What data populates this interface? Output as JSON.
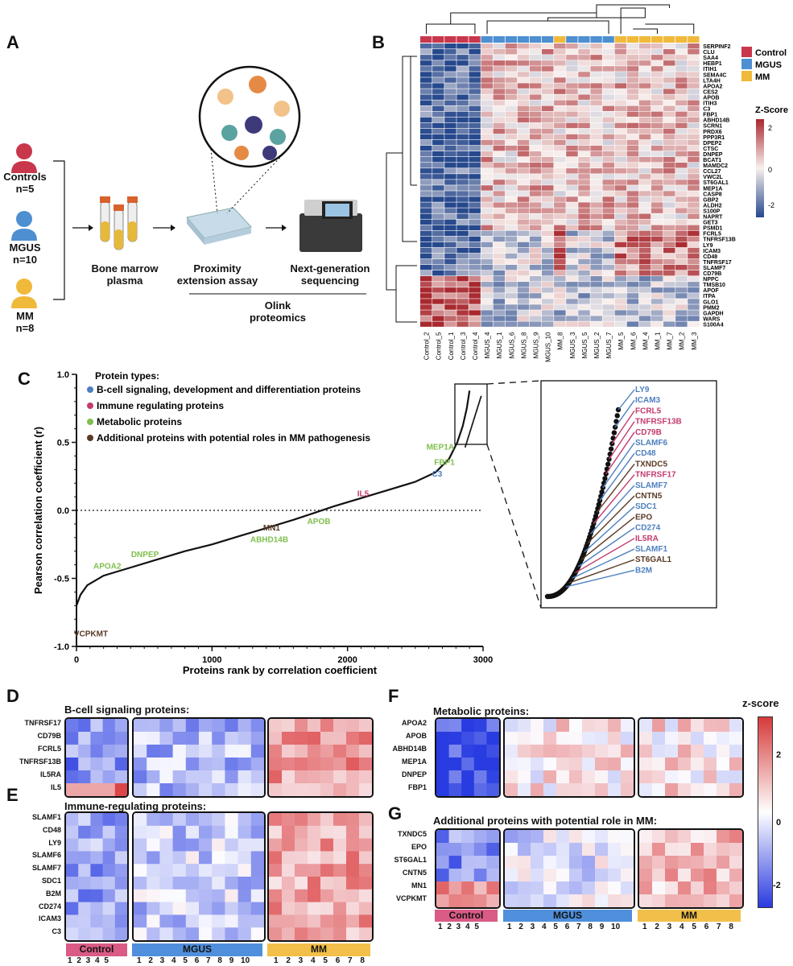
{
  "panels": {
    "a": "A",
    "b": "B",
    "c": "C",
    "d": "D",
    "e": "E",
    "f": "F",
    "g": "G"
  },
  "panelA": {
    "groups": [
      {
        "name": "Controls",
        "count": "n=5",
        "color": "#c9374c"
      },
      {
        "name": "MGUS",
        "count": "n=10",
        "color": "#4d8fd1"
      },
      {
        "name": "MM",
        "count": "n=8",
        "color": "#f0b93a"
      }
    ],
    "steps": {
      "sample": "Bone marrow\nplasma",
      "assay": "Proximity\nextension assay",
      "seq": "Next-generation\nsequencing",
      "platform": "Olink\nproteomics"
    }
  },
  "panelB": {
    "legend": [
      {
        "label": "Control",
        "color": "#c9374c"
      },
      {
        "label": "MGUS",
        "color": "#4d8fd1"
      },
      {
        "label": "MM",
        "color": "#f0b93a"
      }
    ],
    "zscore_title": "Z-Score",
    "zscore_ticks": [
      "2",
      "0",
      "-2"
    ],
    "proteins": [
      "SERPINF2",
      "CLU",
      "SAA4",
      "HEBP1",
      "ITIH1",
      "SEMA4C",
      "LTA4H",
      "APOA2",
      "CES2",
      "APOB",
      "ITIH3",
      "C3",
      "FBP1",
      "ABHD14B",
      "SCRN1",
      "PRDX6",
      "PPP3R1",
      "DPEP2",
      "CTSC",
      "DNPEP",
      "BCAT1",
      "MAMDC2",
      "CCL27",
      "VWC2L",
      "ST6GAL1",
      "MEP1A",
      "CASP8",
      "GBP2",
      "ALDH2",
      "S100P",
      "NAPRT",
      "GET3",
      "PSMD1",
      "FCRL5",
      "TNFRSF13B",
      "LY9",
      "ICAM3",
      "CD48",
      "TNFRSF17",
      "SLAMF7",
      "CD79B",
      "NPPC",
      "TMSB10",
      "APOF",
      "ITPA",
      "GLO1",
      "PMM2",
      "GAPDH",
      "WARS",
      "S100A4"
    ],
    "samples": [
      "Control_2",
      "Control_5",
      "Control_1",
      "Control_3",
      "Control_4",
      "MGUS_4",
      "MGUS_1",
      "MGUS_6",
      "MGUS_8",
      "MGUS_9",
      "MGUS_10",
      "MM_8",
      "MGUS_3",
      "MGUS_5",
      "MGUS_2",
      "MGUS_7",
      "MM_5",
      "MM_6",
      "MM_4",
      "MM_1",
      "MM_7",
      "MM_2",
      "MM_3"
    ],
    "sample_groups": [
      "C",
      "C",
      "C",
      "C",
      "C",
      "G",
      "G",
      "G",
      "G",
      "G",
      "G",
      "M",
      "G",
      "G",
      "G",
      "G",
      "M",
      "M",
      "M",
      "M",
      "M",
      "M",
      "M"
    ]
  },
  "panelC": {
    "chart_data": {
      "type": "line",
      "title": "",
      "xlabel": "Proteins rank by correlation coefficient",
      "ylabel": "Pearson correlation coefficient (r)",
      "xlim": [
        0,
        3000
      ],
      "ylim": [
        -1.0,
        1.0
      ],
      "xticks": [
        "0",
        "1000",
        "2000",
        "3000"
      ],
      "yticks": [
        "1.0",
        "0.5",
        "0.0",
        "-0.5",
        "-1.0"
      ],
      "legend_title": "Protein types:",
      "legend": [
        {
          "label": "B-cell signaling, development and differentiation proteins",
          "color": "#4d7fc0"
        },
        {
          "label": "Immune regulating proteins",
          "color": "#c43a6e"
        },
        {
          "label": "Metabolic proteins",
          "color": "#7fbf4d"
        },
        {
          "label": "Additional proteins with potential roles in MM pathogenesis",
          "color": "#5a3a25"
        }
      ],
      "curve": [
        [
          0,
          -0.7
        ],
        [
          30,
          -0.62
        ],
        [
          80,
          -0.55
        ],
        [
          200,
          -0.48
        ],
        [
          400,
          -0.42
        ],
        [
          600,
          -0.36
        ],
        [
          800,
          -0.3
        ],
        [
          1000,
          -0.25
        ],
        [
          1200,
          -0.19
        ],
        [
          1400,
          -0.13
        ],
        [
          1600,
          -0.07
        ],
        [
          1750,
          -0.02
        ],
        [
          1900,
          0.03
        ],
        [
          2100,
          0.09
        ],
        [
          2300,
          0.15
        ],
        [
          2500,
          0.21
        ],
        [
          2650,
          0.28
        ],
        [
          2750,
          0.38
        ],
        [
          2810,
          0.5
        ],
        [
          2850,
          0.62
        ],
        [
          2880,
          0.75
        ],
        [
          2900,
          0.88
        ]
      ],
      "annotations": [
        {
          "label": "MEP1A",
          "x": 2760,
          "y": 0.43,
          "type": "metabolic"
        },
        {
          "label": "FBP1",
          "x": 2770,
          "y": 0.37,
          "type": "metabolic"
        },
        {
          "label": "C3",
          "x": 2730,
          "y": 0.32,
          "type": "bcell"
        },
        {
          "label": "IL5",
          "x": 2250,
          "y": 0.08,
          "type": "immune"
        },
        {
          "label": "APOB",
          "x": 1750,
          "y": -0.03,
          "type": "metabolic"
        },
        {
          "label": "MN1",
          "x": 1520,
          "y": -0.1,
          "type": "additional"
        },
        {
          "label": "ABHD14B",
          "x": 1520,
          "y": -0.14,
          "type": "metabolic"
        },
        {
          "label": "DNPEP",
          "x": 700,
          "y": -0.32,
          "type": "metabolic"
        },
        {
          "label": "APOA2",
          "x": 600,
          "y": -0.37,
          "type": "metabolic"
        },
        {
          "label": "VCPKMT",
          "x": 130,
          "y": -0.76,
          "type": "additional"
        }
      ]
    },
    "zoom_labels": [
      {
        "label": "LY9",
        "type": "bcell"
      },
      {
        "label": "ICAM3",
        "type": "bcell"
      },
      {
        "label": "FCRL5",
        "type": "immune"
      },
      {
        "label": "TNFRSF13B",
        "type": "immune"
      },
      {
        "label": "CD79B",
        "type": "immune"
      },
      {
        "label": "SLAMF6",
        "type": "bcell"
      },
      {
        "label": "CD48",
        "type": "bcell"
      },
      {
        "label": "TXNDC5",
        "type": "additional"
      },
      {
        "label": "TNFRSF17",
        "type": "immune"
      },
      {
        "label": "SLAMF7",
        "type": "bcell"
      },
      {
        "label": "CNTN5",
        "type": "additional"
      },
      {
        "label": "SDC1",
        "type": "bcell"
      },
      {
        "label": "EPO",
        "type": "additional"
      },
      {
        "label": "CD274",
        "type": "bcell"
      },
      {
        "label": "IL5RA",
        "type": "immune"
      },
      {
        "label": "SLAMF1",
        "type": "bcell"
      },
      {
        "label": "ST6GAL1",
        "type": "additional"
      },
      {
        "label": "B2M",
        "type": "bcell"
      }
    ]
  },
  "panelD": {
    "title": "B-cell signaling proteins:",
    "rows": [
      "TNFRSF17",
      "CD79B",
      "FCRL5",
      "TNFRSF13B",
      "IL5RA",
      "IL5"
    ]
  },
  "panelE": {
    "title": "Immune-regulating proteins:",
    "rows": [
      "SLAMF1",
      "CD48",
      "LY9",
      "SLAMF6",
      "SLAMF7",
      "SDC1",
      "B2M",
      "CD274",
      "ICAM3",
      "C3"
    ]
  },
  "panelF": {
    "title": "Metabolic proteins:",
    "rows": [
      "APOA2",
      "APOB",
      "ABHD14B",
      "MEP1A",
      "DNPEP",
      "FBP1"
    ]
  },
  "panelG": {
    "title": "Additional proteins with potential role in MM:",
    "rows": [
      "TXNDC5",
      "EPO",
      "ST6GAL1",
      "CNTN5",
      "MN1",
      "VCPKMT"
    ]
  },
  "groupBars": {
    "control": {
      "label": "Control",
      "color": "#d95b86",
      "nums": "1 2 3 4 5"
    },
    "mgus": {
      "label": "MGUS",
      "color": "#4f8fdc",
      "nums": "1 2 3 4 5 6 7 8 9 10"
    },
    "mm": {
      "label": "MM",
      "color": "#f2c04a",
      "nums": "1 2 3 4 5 6 7 8"
    }
  },
  "zscale": {
    "title": "z-score",
    "ticks": [
      "2",
      "0",
      "-2"
    ]
  }
}
